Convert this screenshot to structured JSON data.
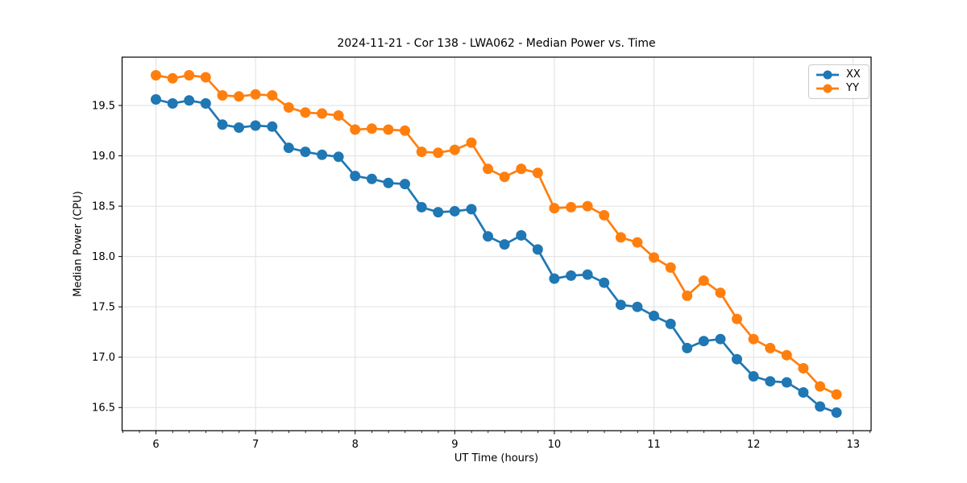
{
  "figure": {
    "title": "2024-11-21 - Cor 138 - LWA062 - Median Power vs. Time"
  },
  "chart_data": {
    "type": "line",
    "title": "2024-11-21 - Cor 138 - LWA062 - Median Power vs. Time",
    "xlabel": "UT Time (hours)",
    "ylabel": "Median Power (CPU)",
    "x": [
      6.0,
      6.167,
      6.333,
      6.5,
      6.667,
      6.833,
      7.0,
      7.167,
      7.333,
      7.5,
      7.667,
      7.833,
      8.0,
      8.167,
      8.333,
      8.5,
      8.667,
      8.833,
      9.0,
      9.167,
      9.333,
      9.5,
      9.667,
      9.833,
      10.0,
      10.167,
      10.333,
      10.5,
      10.667,
      10.833,
      11.0,
      11.167,
      11.333,
      11.5,
      11.667,
      11.833,
      12.0,
      12.167,
      12.333,
      12.5,
      12.667,
      12.833
    ],
    "series": [
      {
        "name": "XX",
        "color": "#1f77b4",
        "values": [
          19.56,
          19.52,
          19.55,
          19.52,
          19.31,
          19.28,
          19.3,
          19.29,
          19.08,
          19.04,
          19.01,
          18.99,
          18.8,
          18.77,
          18.73,
          18.72,
          18.49,
          18.44,
          18.45,
          18.47,
          18.2,
          18.12,
          18.21,
          18.07,
          17.78,
          17.81,
          17.82,
          17.74,
          17.52,
          17.5,
          17.41,
          17.33,
          17.09,
          17.16,
          17.18,
          16.98,
          16.81,
          16.76,
          16.75,
          16.65,
          16.51,
          16.45
        ]
      },
      {
        "name": "YY",
        "color": "#ff7f0e",
        "values": [
          19.8,
          19.77,
          19.8,
          19.78,
          19.6,
          19.59,
          19.61,
          19.6,
          19.48,
          19.43,
          19.42,
          19.4,
          19.26,
          19.27,
          19.26,
          19.25,
          19.04,
          19.03,
          19.06,
          19.13,
          18.87,
          18.79,
          18.87,
          18.83,
          18.48,
          18.49,
          18.5,
          18.41,
          18.19,
          18.14,
          17.99,
          17.89,
          17.61,
          17.76,
          17.64,
          17.38,
          17.18,
          17.09,
          17.02,
          16.89,
          16.71,
          16.63
        ]
      }
    ],
    "xlim": [
      5.66,
      13.18
    ],
    "ylim": [
      16.27,
      19.98
    ],
    "xticks": [
      6,
      7,
      8,
      9,
      10,
      11,
      12,
      13
    ],
    "yticks": [
      16.5,
      17.0,
      17.5,
      18.0,
      18.5,
      19.0,
      19.5
    ],
    "x_minor_step": 0.1667,
    "grid": true,
    "grid_color": "#e0e0e0",
    "legend_position": "upper right",
    "marker": "circle"
  }
}
